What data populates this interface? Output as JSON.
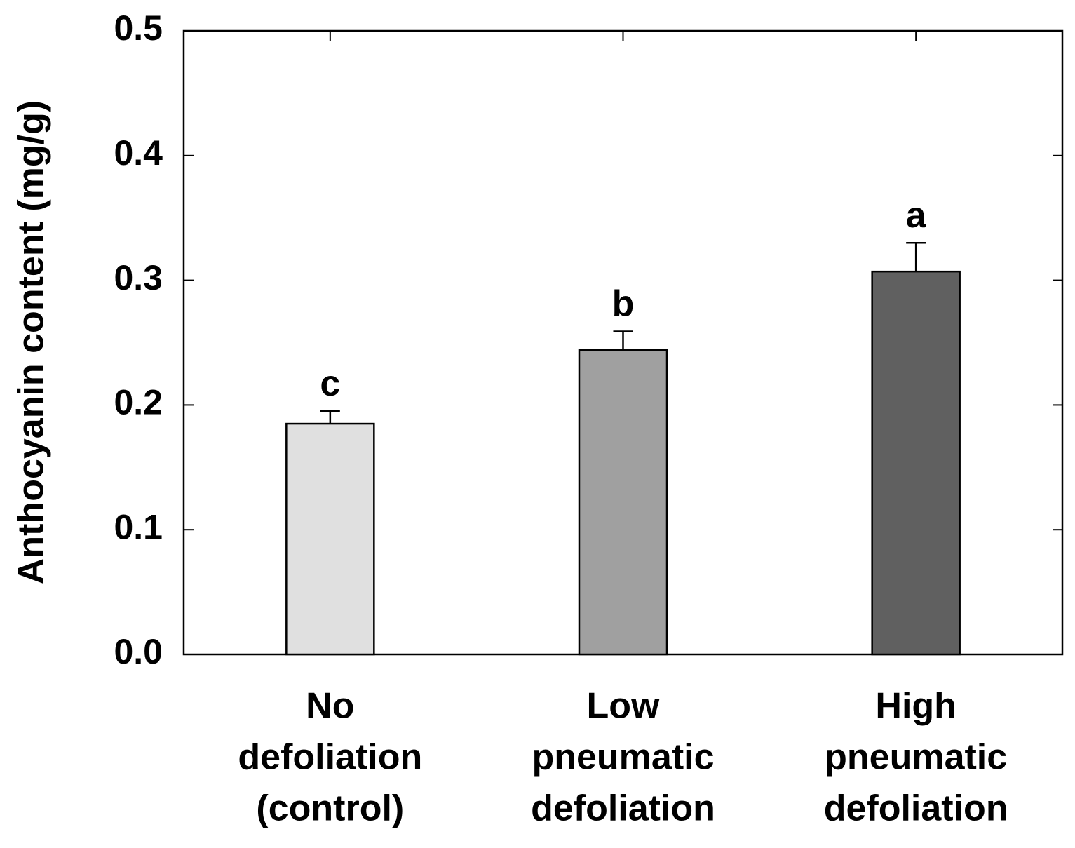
{
  "chart_data": {
    "type": "bar",
    "y_label": "Anthocyanin content (mg/g)",
    "categories": [
      [
        "No",
        "defoliation",
        "(control)"
      ],
      [
        "Low",
        "pneumatic",
        "defoliation"
      ],
      [
        "High",
        "pneumatic",
        "defoliation"
      ]
    ],
    "values": [
      0.185,
      0.244,
      0.307
    ],
    "errors": [
      0.01,
      0.015,
      0.023
    ],
    "annotations": [
      "c",
      "b",
      "a"
    ],
    "colors": [
      "#e0e0e0",
      "#a0a0a0",
      "#606060"
    ],
    "ylim": [
      0,
      0.5
    ],
    "yticks": [
      {
        "value": 0,
        "label": "0.0"
      },
      0.1,
      0.2,
      0.3,
      0.4,
      0.5
    ],
    "grid": false
  }
}
